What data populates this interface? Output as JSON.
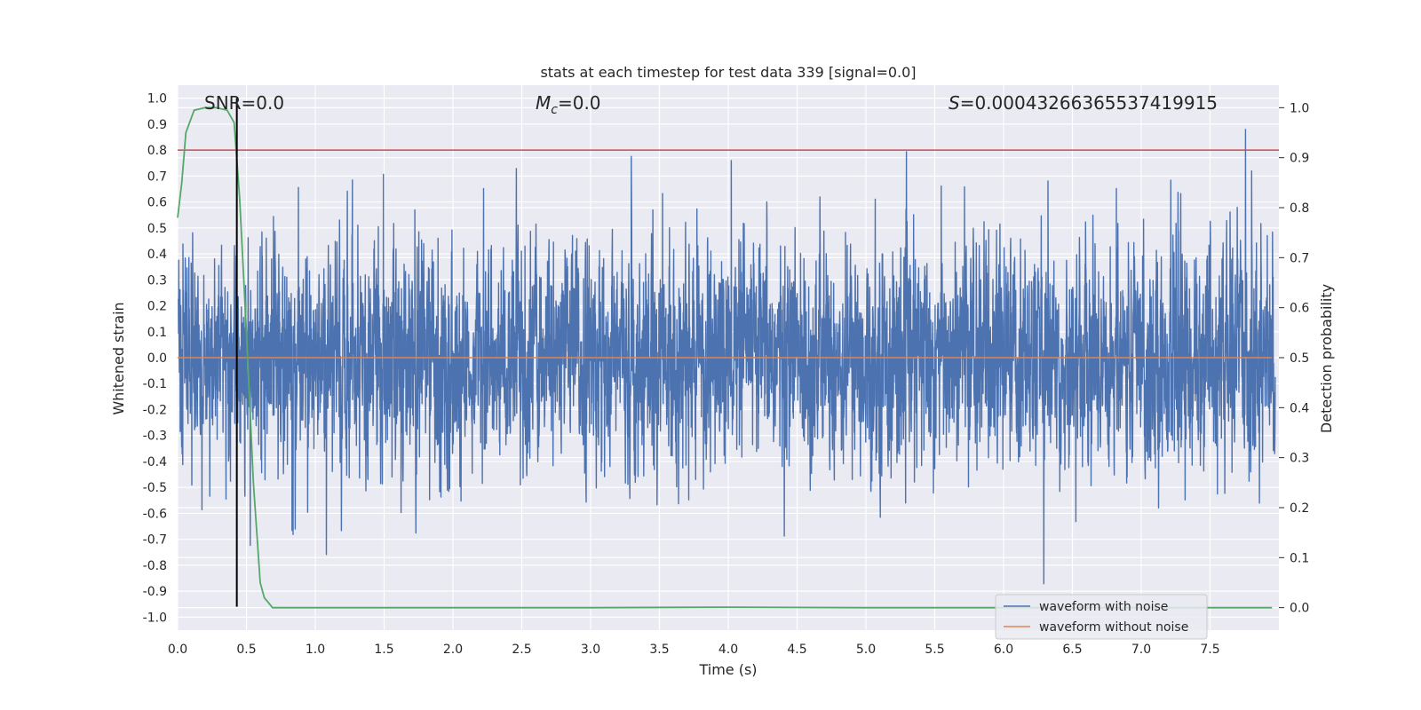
{
  "chart_data": {
    "type": "line",
    "title": "stats at each timestep for test data 339 [signal=0.0]",
    "xlabel": "Time (s)",
    "ylabel": "Whitened strain",
    "y2label": "Detection probability",
    "xlim": [
      0.0,
      8.0
    ],
    "ylim": [
      -1.05,
      1.05
    ],
    "y2lim": [
      -0.045,
      1.045
    ],
    "xticks": [
      "0.0",
      "0.5",
      "1.0",
      "1.5",
      "2.0",
      "2.5",
      "3.0",
      "3.5",
      "4.0",
      "4.5",
      "5.0",
      "5.5",
      "6.0",
      "6.5",
      "7.0",
      "7.5"
    ],
    "yticks": [
      "1.0",
      "0.9",
      "0.8",
      "0.7",
      "0.6",
      "0.5",
      "0.4",
      "0.3",
      "0.2",
      "0.1",
      "0.0",
      "-0.1",
      "-0.2",
      "-0.3",
      "-0.4",
      "-0.5",
      "-0.6",
      "-0.7",
      "-0.8",
      "-0.9",
      "-1.0"
    ],
    "y2ticks": [
      "1.0",
      "0.9",
      "0.8",
      "0.7",
      "0.6",
      "0.5",
      "0.4",
      "0.3",
      "0.2",
      "0.1",
      "0.0"
    ],
    "annotations": {
      "snr": "SNR=0.0",
      "mc_symbol": "M",
      "mc_sub": "c",
      "mc_value": "=0.0",
      "s_symbol": "S",
      "s_value": "=0.00043266365537419915"
    },
    "series": [
      {
        "name": "waveform with noise",
        "color": "#4c72b0",
        "kind": "noise",
        "amplitude_envelope": [
          -0.96,
          1.0
        ]
      },
      {
        "name": "waveform without noise",
        "color": "#dd8452",
        "y": 0.0
      },
      {
        "color": "#55a868",
        "axis": "right",
        "x": [
          0.0,
          0.03,
          0.06,
          0.12,
          0.2,
          0.28,
          0.36,
          0.41,
          0.45,
          0.5,
          0.55,
          0.6,
          0.63,
          0.69,
          0.8,
          1.5,
          3.0,
          4.0,
          5.0,
          6.0,
          7.0,
          7.95
        ],
        "y": [
          0.78,
          0.85,
          0.95,
          0.995,
          1.0,
          1.0,
          0.995,
          0.97,
          0.82,
          0.55,
          0.25,
          0.05,
          0.02,
          0.0,
          0.0,
          0.0,
          0.0,
          0.001,
          0.0,
          0.0,
          0.0,
          0.0
        ]
      },
      {
        "color": "#c44e52",
        "y": 0.8
      },
      {
        "color": "#000000",
        "x": 0.43
      }
    ],
    "legend_position": "lower right",
    "grid": true,
    "colors": {
      "noise": "#4c72b0",
      "clean": "#dd8452",
      "prob": "#55a868",
      "threshold": "#c44e52",
      "marker": "#000000",
      "axes_bg": "#eaeaf2",
      "grid": "#ffffff"
    }
  }
}
